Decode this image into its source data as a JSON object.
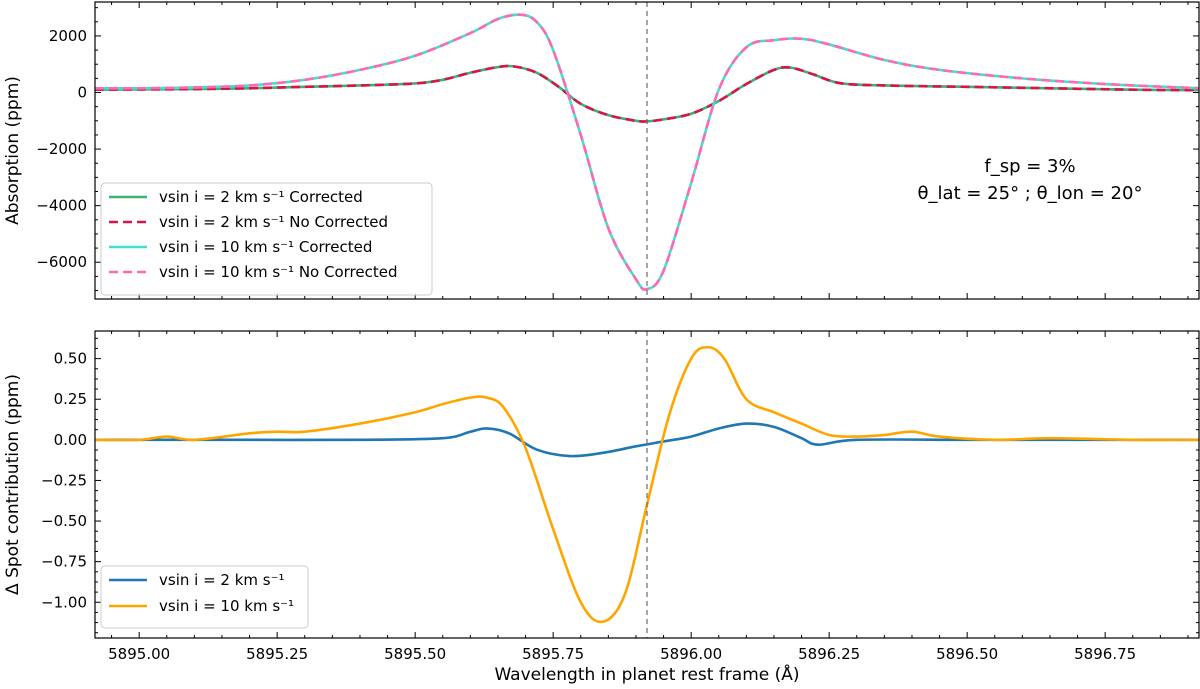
{
  "chart_data": [
    {
      "type": "line",
      "title": "",
      "xlabel": "",
      "ylabel": "Absorption (ppm)",
      "xlim": [
        5894.92,
        5896.92
      ],
      "ylim": [
        -7300,
        3200
      ],
      "yticks": [
        2000,
        0,
        -2000,
        -4000,
        -6000
      ],
      "ytick_labels": [
        "2000",
        "0",
        "−2000",
        "−4000",
        "−6000"
      ],
      "vline_x": 5895.92,
      "annotation_lines": [
        "f_sp = 3%",
        "θ_lat = 25° ; θ_lon = 20°"
      ],
      "legend_position": "lower-left",
      "series": [
        {
          "name": "vsin i = 2 km s⁻¹ Corrected",
          "color": "#3cb371",
          "dash": "solid",
          "x": [
            5894.92,
            5895.0,
            5895.1,
            5895.2,
            5895.3,
            5895.4,
            5895.5,
            5895.55,
            5895.6,
            5895.65,
            5895.68,
            5895.72,
            5895.76,
            5895.8,
            5895.85,
            5895.9,
            5895.92,
            5895.95,
            5896.0,
            5896.05,
            5896.1,
            5896.15,
            5896.18,
            5896.22,
            5896.27,
            5896.35,
            5896.5,
            5896.65,
            5896.8,
            5896.92
          ],
          "y": [
            100,
            110,
            120,
            150,
            200,
            250,
            320,
            450,
            700,
            900,
            920,
            700,
            200,
            -400,
            -800,
            -1000,
            -1020,
            -950,
            -750,
            -300,
            300,
            800,
            880,
            650,
            330,
            250,
            200,
            150,
            100,
            80
          ]
        },
        {
          "name": "vsin i = 2 km s⁻¹ No Corrected",
          "color": "#d6154a",
          "dash": "dashed",
          "x": [
            5894.92,
            5895.0,
            5895.1,
            5895.2,
            5895.3,
            5895.4,
            5895.5,
            5895.55,
            5895.6,
            5895.65,
            5895.68,
            5895.72,
            5895.76,
            5895.8,
            5895.85,
            5895.9,
            5895.92,
            5895.95,
            5896.0,
            5896.05,
            5896.1,
            5896.15,
            5896.18,
            5896.22,
            5896.27,
            5896.35,
            5896.5,
            5896.65,
            5896.8,
            5896.92
          ],
          "y": [
            100,
            110,
            120,
            150,
            200,
            250,
            320,
            450,
            700,
            900,
            920,
            700,
            200,
            -400,
            -800,
            -1000,
            -1020,
            -950,
            -750,
            -300,
            300,
            800,
            880,
            650,
            330,
            250,
            200,
            150,
            100,
            80
          ]
        },
        {
          "name": "vsin i = 10 km s⁻¹ Corrected",
          "color": "#40e0d0",
          "dash": "solid",
          "x": [
            5894.92,
            5895.0,
            5895.1,
            5895.2,
            5895.3,
            5895.4,
            5895.5,
            5895.6,
            5895.65,
            5895.69,
            5895.72,
            5895.75,
            5895.8,
            5895.85,
            5895.9,
            5895.92,
            5895.95,
            5896.0,
            5896.05,
            5896.1,
            5896.15,
            5896.2,
            5896.25,
            5896.35,
            5896.45,
            5896.6,
            5896.75,
            5896.92
          ],
          "y": [
            150,
            150,
            180,
            250,
            450,
            800,
            1300,
            2100,
            2600,
            2750,
            2500,
            1500,
            -1500,
            -4800,
            -6600,
            -6950,
            -6300,
            -3200,
            100,
            1600,
            1850,
            1900,
            1700,
            1150,
            800,
            500,
            300,
            150
          ]
        },
        {
          "name": "vsin i = 10 km s⁻¹ No Corrected",
          "color": "#ff69b4",
          "dash": "dashed",
          "x": [
            5894.92,
            5895.0,
            5895.1,
            5895.2,
            5895.3,
            5895.4,
            5895.5,
            5895.6,
            5895.65,
            5895.69,
            5895.72,
            5895.75,
            5895.8,
            5895.85,
            5895.9,
            5895.92,
            5895.95,
            5896.0,
            5896.05,
            5896.1,
            5896.15,
            5896.2,
            5896.25,
            5896.35,
            5896.45,
            5896.6,
            5896.75,
            5896.92
          ],
          "y": [
            150,
            150,
            180,
            250,
            450,
            800,
            1300,
            2100,
            2600,
            2750,
            2500,
            1500,
            -1500,
            -4800,
            -6600,
            -6950,
            -6300,
            -3200,
            100,
            1600,
            1850,
            1900,
            1700,
            1150,
            800,
            500,
            300,
            150
          ]
        }
      ]
    },
    {
      "type": "line",
      "title": "",
      "xlabel": "Wavelength in planet rest frame (Å)",
      "ylabel": "Δ Spot contribution (ppm)",
      "xlim": [
        5894.92,
        5896.92
      ],
      "ylim": [
        -1.22,
        0.67
      ],
      "xticks": [
        5895.0,
        5895.25,
        5895.5,
        5895.75,
        5896.0,
        5896.25,
        5896.5,
        5896.75
      ],
      "xtick_labels": [
        "5895.00",
        "5895.25",
        "5895.50",
        "5895.75",
        "5896.00",
        "5896.25",
        "5896.50",
        "5896.75"
      ],
      "yticks": [
        0.5,
        0.25,
        0.0,
        -0.25,
        -0.5,
        -0.75,
        -1.0
      ],
      "ytick_labels": [
        "0.50",
        "0.25",
        "0.00",
        "−0.25",
        "−0.50",
        "−0.75",
        "−1.00"
      ],
      "vline_x": 5895.92,
      "legend_position": "lower-left",
      "series": [
        {
          "name": "vsin i = 2 km s⁻¹",
          "color": "#1f77b4",
          "dash": "solid",
          "x": [
            5894.92,
            5895.0,
            5895.2,
            5895.4,
            5895.55,
            5895.6,
            5895.63,
            5895.67,
            5895.72,
            5895.78,
            5895.84,
            5895.9,
            5895.95,
            5896.0,
            5896.05,
            5896.1,
            5896.15,
            5896.2,
            5896.23,
            5896.3,
            5896.5,
            5896.7,
            5896.92
          ],
          "y": [
            0.0,
            0.0,
            0.0,
            0.0,
            0.01,
            0.05,
            0.07,
            0.04,
            -0.06,
            -0.1,
            -0.08,
            -0.04,
            -0.01,
            0.02,
            0.07,
            0.1,
            0.08,
            0.01,
            -0.03,
            0.0,
            0.0,
            0.0,
            0.0
          ]
        },
        {
          "name": "vsin i = 10 km s⁻¹",
          "color": "#ffa500",
          "dash": "solid",
          "x": [
            5894.92,
            5895.0,
            5895.05,
            5895.1,
            5895.2,
            5895.25,
            5895.3,
            5895.4,
            5895.5,
            5895.55,
            5895.6,
            5895.63,
            5895.66,
            5895.7,
            5895.75,
            5895.8,
            5895.84,
            5895.88,
            5895.92,
            5895.96,
            5896.0,
            5896.03,
            5896.06,
            5896.1,
            5896.15,
            5896.2,
            5896.25,
            5896.3,
            5896.35,
            5896.4,
            5896.45,
            5896.55,
            5896.65,
            5896.8,
            5896.92
          ],
          "y": [
            0.0,
            0.0,
            0.02,
            0.0,
            0.04,
            0.05,
            0.05,
            0.1,
            0.17,
            0.22,
            0.26,
            0.26,
            0.2,
            -0.05,
            -0.55,
            -1.0,
            -1.12,
            -0.95,
            -0.4,
            0.15,
            0.5,
            0.57,
            0.5,
            0.25,
            0.17,
            0.1,
            0.03,
            0.02,
            0.03,
            0.05,
            0.02,
            0.0,
            0.01,
            0.0,
            0.0
          ]
        }
      ]
    }
  ]
}
